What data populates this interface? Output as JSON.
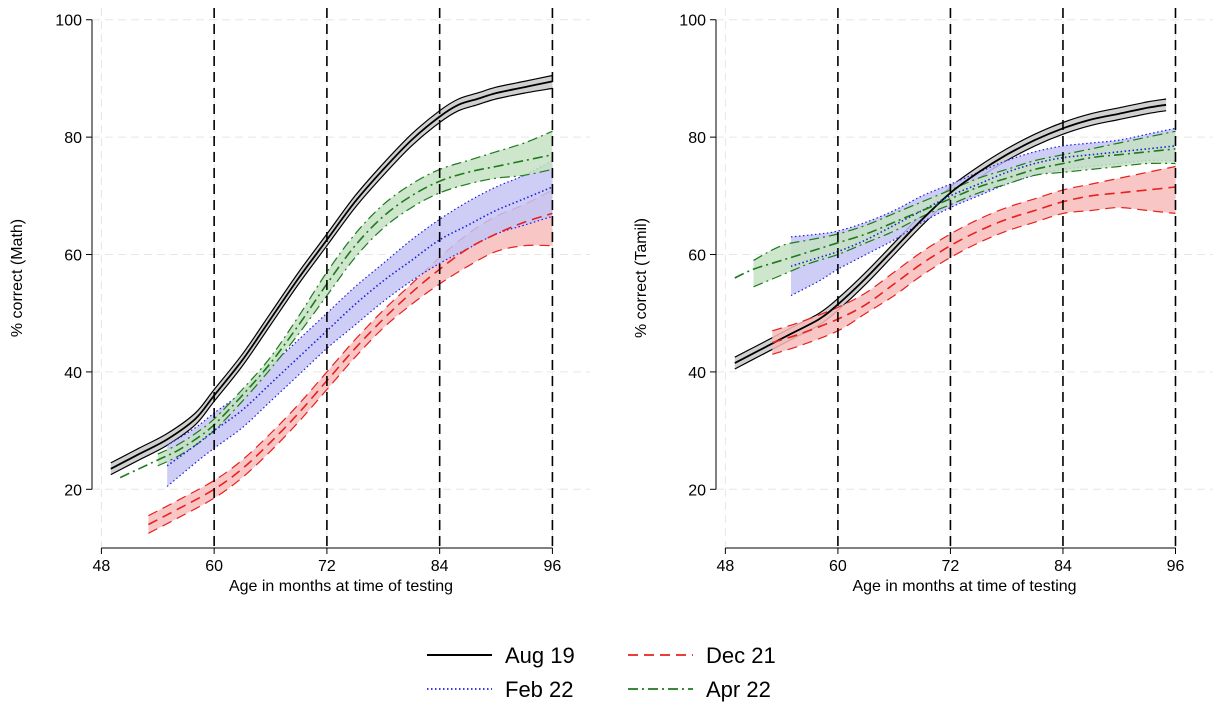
{
  "chart_data": [
    {
      "type": "line",
      "panel": "left",
      "title": "",
      "xlabel": "Age in months at time of testing",
      "ylabel": "% correct (Math)",
      "xlim": [
        47,
        100
      ],
      "ylim": [
        10,
        102
      ],
      "xticks": [
        48,
        60,
        72,
        84,
        96
      ],
      "yticks": [
        20,
        40,
        60,
        80,
        100
      ],
      "vlines": [
        60,
        72,
        84,
        96
      ],
      "grid": true,
      "series": [
        {
          "name": "Aug 19",
          "color": "#000000",
          "style": "solid",
          "x": [
            49,
            52,
            55,
            58,
            60,
            63,
            66,
            69,
            72,
            75,
            78,
            81,
            84,
            86,
            88,
            90,
            93,
            96
          ],
          "y": [
            23.5,
            26,
            28.5,
            32,
            36,
            42,
            49,
            56,
            62.5,
            69,
            74.5,
            79.5,
            83.5,
            85.5,
            86.5,
            87.5,
            88.5,
            89.5
          ],
          "lo": [
            22.5,
            25,
            27.5,
            31,
            35,
            41,
            48,
            55,
            61.5,
            68,
            73.5,
            78.5,
            82.5,
            84.5,
            85.5,
            86.5,
            87.5,
            88.3
          ],
          "hi": [
            24.5,
            27,
            29.5,
            33,
            37,
            43,
            50,
            57,
            63.5,
            70,
            75.5,
            80.5,
            84.5,
            86.5,
            87.5,
            88.5,
            89.5,
            90.5
          ]
        },
        {
          "name": "Dec 21",
          "color": "#e8201e",
          "style": "dashed",
          "x": [
            53,
            56,
            60,
            63,
            66,
            69,
            72,
            75,
            78,
            81,
            84,
            87,
            90,
            93,
            96
          ],
          "y": [
            14,
            16.5,
            20,
            23.5,
            28,
            33,
            38.5,
            44,
            49,
            53.5,
            57.5,
            61,
            63.5,
            65.5,
            67
          ],
          "lo": [
            12.5,
            15,
            18.5,
            22,
            26.5,
            31.5,
            37,
            42.5,
            47.5,
            51.5,
            55,
            58,
            60.5,
            61.5,
            61.5
          ],
          "hi": [
            15.5,
            18,
            21.5,
            25,
            29.5,
            34.5,
            40,
            45.5,
            50.5,
            55,
            59.5,
            63.5,
            66.5,
            68.5,
            71
          ]
        },
        {
          "name": "Feb 22",
          "color": "#1f1fdd",
          "style": "dotted",
          "x": [
            55,
            58,
            60,
            63,
            66,
            69,
            72,
            75,
            78,
            81,
            84,
            87,
            90,
            93,
            96
          ],
          "y": [
            24,
            27.5,
            30,
            33.5,
            38,
            42.5,
            47,
            51.5,
            55.5,
            59,
            62.5,
            65,
            67.5,
            69.5,
            71.5
          ],
          "lo": [
            20.5,
            24.5,
            27,
            30.5,
            35,
            39.5,
            44,
            48,
            52,
            55.5,
            58.5,
            61,
            63.5,
            65,
            66.5
          ],
          "hi": [
            27.5,
            30.5,
            33,
            36.5,
            41,
            45.5,
            50,
            54.5,
            58.5,
            62.5,
            66,
            69,
            71.5,
            73.5,
            76
          ]
        },
        {
          "name": "Apr 22",
          "color": "#1d7a1d",
          "style": "dashdot",
          "x": [
            50,
            52,
            54,
            56,
            58,
            60,
            63,
            66,
            69,
            72,
            75,
            78,
            81,
            84,
            87,
            90,
            93,
            96
          ],
          "y": [
            22,
            23.5,
            25,
            26.5,
            28.5,
            31,
            36,
            41.5,
            48,
            55,
            61.5,
            66.5,
            70,
            72.5,
            74,
            75,
            76,
            77
          ],
          "lo": [
            null,
            null,
            24,
            25.5,
            27.5,
            30,
            35,
            40.5,
            46.5,
            53,
            59.5,
            64.5,
            68,
            70.5,
            72,
            73,
            73.5,
            74.5
          ],
          "hi": [
            null,
            null,
            26,
            27.5,
            29.5,
            32,
            37,
            42.5,
            49.5,
            57,
            63.5,
            68.5,
            72,
            74.5,
            76,
            77.5,
            79,
            81
          ]
        }
      ]
    },
    {
      "type": "line",
      "panel": "right",
      "title": "",
      "xlabel": "Age in months at time of testing",
      "ylabel": "% correct (Tamil)",
      "xlim": [
        47,
        100
      ],
      "ylim": [
        10,
        102
      ],
      "xticks": [
        48,
        60,
        72,
        84,
        96
      ],
      "yticks": [
        20,
        40,
        60,
        80,
        100
      ],
      "vlines": [
        60,
        72,
        84,
        96
      ],
      "grid": true,
      "series": [
        {
          "name": "Aug 19",
          "color": "#000000",
          "style": "solid",
          "x": [
            49,
            52,
            55,
            58,
            60,
            63,
            66,
            69,
            72,
            75,
            78,
            81,
            84,
            87,
            90,
            93,
            95
          ],
          "y": [
            41.5,
            44,
            46.5,
            49,
            51.5,
            56,
            61,
            66,
            70.5,
            74,
            77,
            79.5,
            81.5,
            83,
            84,
            85,
            85.5
          ],
          "lo": [
            40.5,
            43,
            45.5,
            48,
            50.5,
            55,
            60,
            65,
            69.5,
            73,
            76,
            78.5,
            80.5,
            82,
            83,
            84,
            84.5
          ],
          "hi": [
            42.5,
            45,
            47.5,
            50,
            52.5,
            57,
            62,
            67,
            71.5,
            75,
            78,
            80.5,
            82.5,
            84,
            85,
            86,
            86.5
          ]
        },
        {
          "name": "Dec 21",
          "color": "#e8201e",
          "style": "dashed",
          "x": [
            53,
            56,
            60,
            63,
            66,
            69,
            72,
            75,
            78,
            81,
            84,
            87,
            90,
            93,
            96
          ],
          "y": [
            45,
            46.5,
            49,
            51.5,
            55,
            58.5,
            61.5,
            64,
            66,
            67.5,
            69,
            70,
            70.5,
            71,
            71.5
          ],
          "lo": [
            43,
            44.5,
            47,
            50,
            53,
            56.5,
            59.5,
            62,
            64,
            65.5,
            67,
            67.5,
            68,
            67.5,
            67
          ],
          "hi": [
            47,
            48.5,
            51,
            53.5,
            57,
            60.5,
            63.5,
            66,
            68,
            69.5,
            71,
            72,
            73,
            74,
            75
          ]
        },
        {
          "name": "Feb 22",
          "color": "#1f1fdd",
          "style": "dotted",
          "x": [
            55,
            58,
            60,
            63,
            66,
            69,
            72,
            75,
            78,
            81,
            84,
            87,
            90,
            93,
            96
          ],
          "y": [
            58,
            59.5,
            60.5,
            62.5,
            65,
            67.5,
            70,
            72,
            74,
            75.5,
            76.5,
            77,
            77.5,
            78,
            78.5
          ],
          "lo": [
            53,
            55.5,
            57.5,
            60,
            62.5,
            65.5,
            68,
            70,
            72,
            73.5,
            74.5,
            75,
            75.5,
            76,
            76
          ],
          "hi": [
            63,
            63.5,
            64,
            65.5,
            67.5,
            70,
            72,
            74,
            76,
            77.5,
            78.5,
            79,
            79.5,
            80.5,
            81.5
          ]
        },
        {
          "name": "Apr 22",
          "color": "#1d7a1d",
          "style": "dashdot",
          "x": [
            49,
            51,
            54,
            57,
            60,
            63,
            66,
            69,
            72,
            75,
            78,
            81,
            84,
            87,
            90,
            93,
            96
          ],
          "y": [
            56,
            57.5,
            59,
            60.5,
            62,
            63.5,
            65.5,
            67.5,
            69.5,
            71.5,
            73,
            74.5,
            75.5,
            76.5,
            77,
            77.5,
            78
          ],
          "lo": [
            null,
            54.5,
            56.5,
            58.5,
            60,
            62,
            64,
            66.5,
            68.5,
            70.5,
            72,
            73.5,
            74,
            74.5,
            75,
            75.5,
            75.5
          ],
          "hi": [
            null,
            59,
            61.5,
            62.5,
            63.5,
            65,
            67,
            69,
            71,
            73,
            74.5,
            76,
            77,
            78,
            79,
            80,
            81
          ]
        }
      ]
    }
  ],
  "legend": {
    "placement": "bottom-center",
    "items": [
      {
        "label": "Aug 19",
        "color": "#000000",
        "style": "solid"
      },
      {
        "label": "Dec 21",
        "color": "#e8201e",
        "style": "dashed"
      },
      {
        "label": "Feb 22",
        "color": "#1f1fdd",
        "style": "dotted"
      },
      {
        "label": "Apr 22",
        "color": "#1d7a1d",
        "style": "dashdot"
      }
    ]
  },
  "colors": {
    "Aug 19": "#000000",
    "Dec 21": "#e8201e",
    "Feb 22": "#1f1fdd",
    "Apr 22": "#1d7a1d",
    "Aug 19_fill": "#c8c8c8",
    "Dec 21_fill": "#f8bcbc",
    "Feb 22_fill": "#c4c4f4",
    "Apr 22_fill": "#c6e2c2",
    "grid": "#e6e6e6"
  }
}
